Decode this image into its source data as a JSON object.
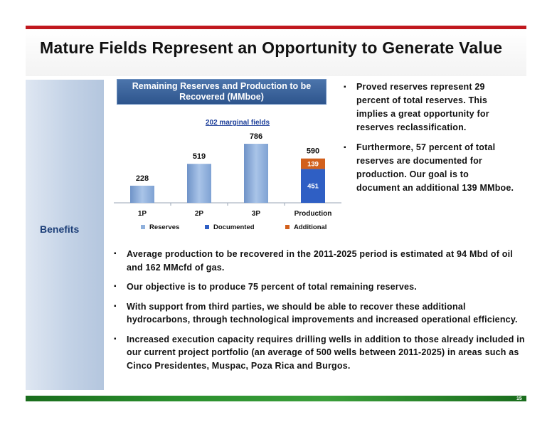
{
  "slide": {
    "title": "Mature Fields Represent an Opportunity to Generate Value",
    "side_label": "Benefits",
    "page_number": "15"
  },
  "chart_data": {
    "type": "bar",
    "title": "Remaining Reserves and Production to be Recovered (MMboe)",
    "subtitle": "202 marginal fields",
    "categories": [
      "1P",
      "2P",
      "3P",
      "Production"
    ],
    "series": [
      {
        "name": "Reserves",
        "values": [
          228,
          519,
          786,
          null
        ]
      },
      {
        "name": "Documented",
        "values": [
          null,
          null,
          null,
          451
        ]
      },
      {
        "name": "Additional",
        "values": [
          null,
          null,
          null,
          139
        ]
      }
    ],
    "totals": [
      228,
      519,
      786,
      590
    ],
    "ylim": [
      0,
      900
    ],
    "legend": "bottom",
    "colors": {
      "Reserves": "#8fb0dc",
      "Documented": "#2f5fc4",
      "Additional": "#d2601c"
    }
  },
  "right_bullets": [
    "Proved reserves represent 29 percent of total reserves. This implies a great opportunity for reserves reclassification.",
    "Furthermore, 57 percent of total reserves are documented for production. Our goal is to document an additional 139 MMboe."
  ],
  "bottom_bullets": [
    "Average production to be recovered in the 2011-2025 period is estimated at 94 Mbd of oil and 162 MMcfd of gas.",
    "Our objective is to produce 75 percent of total remaining reserves.",
    "With support from third parties, we should be able to recover these additional hydrocarbons, through technological improvements and increased operational efficiency.",
    "Increased execution capacity requires drilling wells in addition to those already included in our current project portfolio (an average of 500 wells between 2011-2025) in areas such as Cinco Presidentes, Muspac, Poza Rica and Burgos."
  ],
  "bullet_glyph": "▪"
}
